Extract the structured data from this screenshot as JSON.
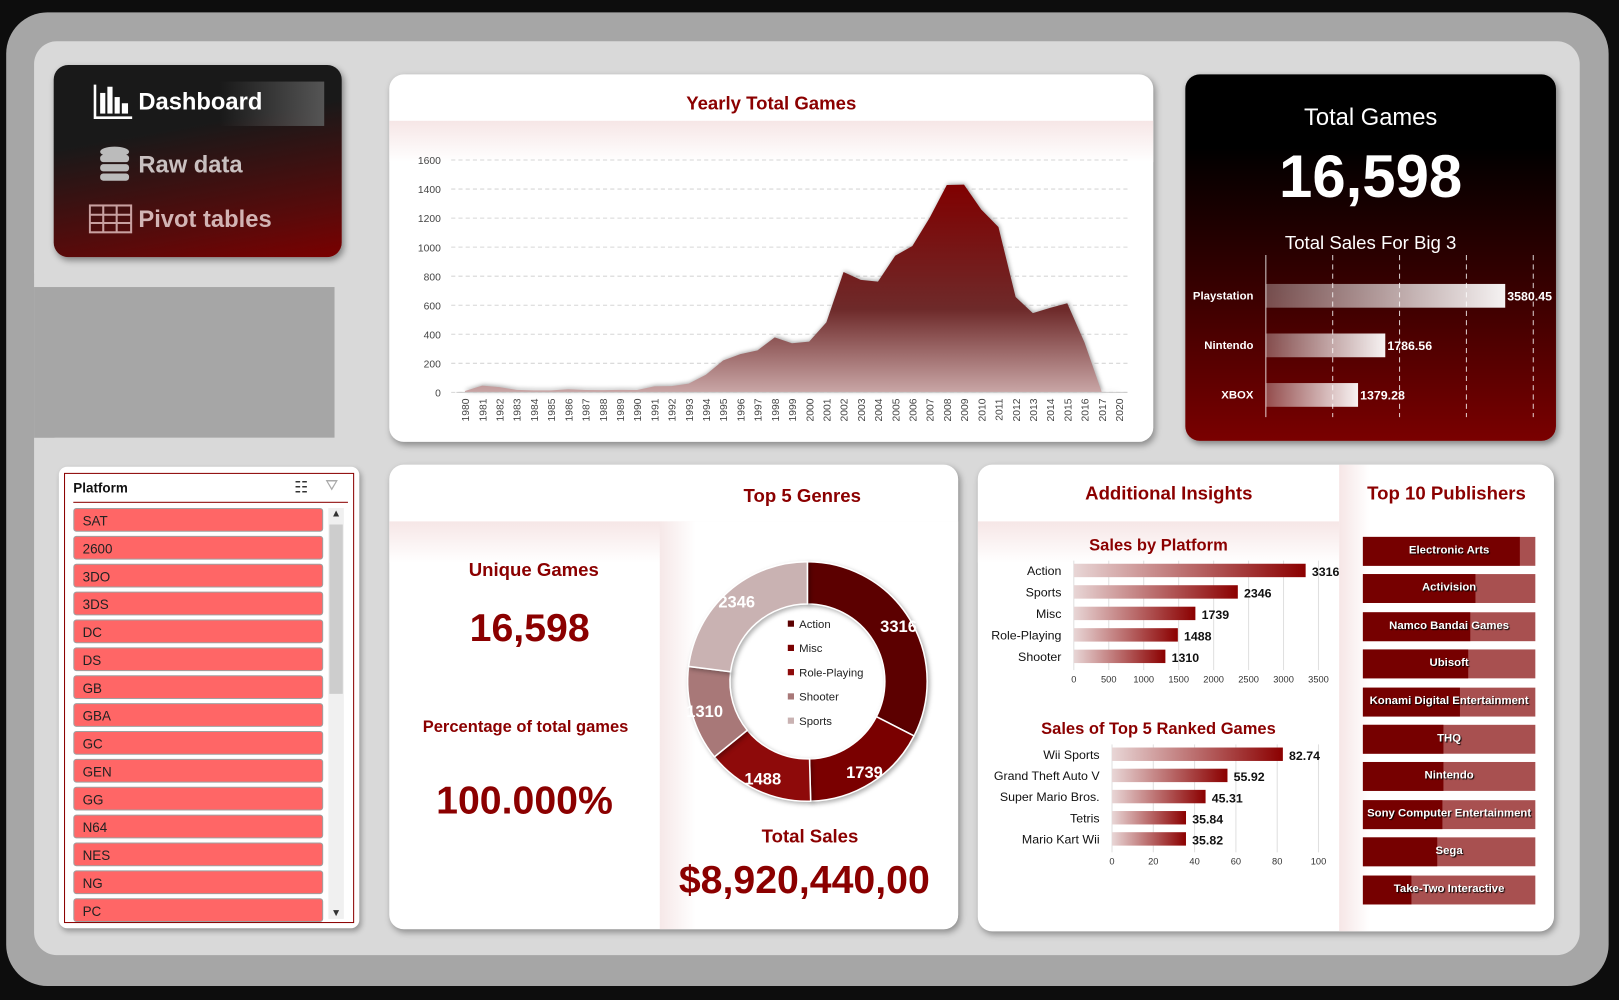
{
  "nav": {
    "items": [
      {
        "label": "Dashboard",
        "icon": "bar-chart-icon"
      },
      {
        "label": "Raw data",
        "icon": "database-icon"
      },
      {
        "label": "Pivot tables",
        "icon": "table-icon"
      }
    ]
  },
  "yearly": {
    "title": "Yearly Total Games"
  },
  "totals": {
    "games_title": "Total Games",
    "games_value": "16,598",
    "big3_title": "Total Sales For Big 3"
  },
  "slicer": {
    "title": "Platform",
    "items": [
      "SAT",
      "2600",
      "3DO",
      "3DS",
      "DC",
      "DS",
      "GB",
      "GBA",
      "GC",
      "GEN",
      "GG",
      "N64",
      "NES",
      "NG",
      "PC"
    ]
  },
  "genres": {
    "title": "Top 5 Genres",
    "unique_label": "Unique Games",
    "unique_value": "16,598",
    "pct_label": "Percentage of total games",
    "pct_value": "100.000%",
    "sales_label": "Total Sales",
    "sales_value": "$8,920,440,00"
  },
  "insights": {
    "title": "Additional Insights"
  },
  "publishers": {
    "title": "Top 10 Publishers",
    "items": [
      {
        "name": "Electronic Arts",
        "fill": 0.91
      },
      {
        "name": "Activision",
        "fill": 0.65
      },
      {
        "name": "Namco Bandai Games",
        "fill": 0.62
      },
      {
        "name": "Ubisoft",
        "fill": 0.61
      },
      {
        "name": "Konami Digital Entertainment",
        "fill": 0.56
      },
      {
        "name": "THQ",
        "fill": 0.47
      },
      {
        "name": "Nintendo",
        "fill": 0.47
      },
      {
        "name": "Sony Computer Entertainment",
        "fill": 0.46
      },
      {
        "name": "Sega",
        "fill": 0.43
      },
      {
        "name": "Take-Two Interactive",
        "fill": 0.28
      }
    ]
  },
  "colors": {
    "accent": "#8b0000",
    "slicer_item": "#ff6666"
  },
  "chart_data": [
    {
      "type": "area",
      "title": "Yearly Total Games",
      "x": [
        "1980",
        "1981",
        "1982",
        "1983",
        "1984",
        "1985",
        "1986",
        "1987",
        "1988",
        "1989",
        "1990",
        "1991",
        "1992",
        "1993",
        "1994",
        "1995",
        "1996",
        "1997",
        "1998",
        "1999",
        "2000",
        "2001",
        "2002",
        "2003",
        "2004",
        "2005",
        "2006",
        "2007",
        "2008",
        "2009",
        "2010",
        "2011",
        "2012",
        "2013",
        "2014",
        "2015",
        "2016",
        "2017",
        "2020"
      ],
      "values": [
        9,
        46,
        36,
        17,
        14,
        14,
        21,
        16,
        15,
        17,
        16,
        41,
        43,
        60,
        121,
        219,
        263,
        289,
        379,
        338,
        349,
        482,
        829,
        775,
        763,
        941,
        1008,
        1202,
        1428,
        1431,
        1259,
        1139,
        657,
        546,
        582,
        614,
        344,
        3,
        1
      ],
      "ylim": [
        0,
        1600
      ],
      "yticks": [
        0,
        200,
        400,
        600,
        800,
        1000,
        1200,
        1400,
        1600
      ],
      "grid": true
    },
    {
      "type": "bar",
      "title": "Total Sales For Big 3",
      "categories": [
        "Playstation",
        "Nintendo",
        "XBOX"
      ],
      "values": [
        3580.45,
        1786.56,
        1379.28
      ],
      "labels": [
        "3580.45",
        "1786.56",
        "1379.28"
      ],
      "xlim": [
        0,
        4000
      ],
      "grid": true
    },
    {
      "type": "pie",
      "title": "Top 5 Genres",
      "categories": [
        "Action",
        "Misc",
        "Role-Playing",
        "Shooter",
        "Sports"
      ],
      "values": [
        3316,
        1739,
        1488,
        1310,
        2346
      ],
      "colors": [
        "#5c0000",
        "#7a0000",
        "#8e0a0a",
        "#a87878",
        "#c9b2b2"
      ],
      "legend": "center"
    },
    {
      "type": "bar",
      "title": "Sales by Platform",
      "categories": [
        "Action",
        "Sports",
        "Misc",
        "Role-Playing",
        "Shooter"
      ],
      "values": [
        3316,
        2346,
        1739,
        1488,
        1310
      ],
      "labels": [
        "3316",
        "2346",
        "1739",
        "1488",
        "1310"
      ],
      "xlim": [
        0,
        3500
      ],
      "xticks": [
        "0",
        "500",
        "1000",
        "1500",
        "2000",
        "2500",
        "3000",
        "3500"
      ]
    },
    {
      "type": "bar",
      "title": "Sales of Top 5 Ranked Games",
      "categories": [
        "Wii Sports",
        "Grand Theft Auto V",
        "Super Mario Bros.",
        "Tetris",
        "Mario Kart Wii"
      ],
      "values": [
        82.74,
        55.92,
        45.31,
        35.84,
        35.82
      ],
      "labels": [
        "82.74",
        "55.92",
        "45.31",
        "35.84",
        "35.82"
      ],
      "xlim": [
        0,
        100
      ],
      "xticks": [
        "0",
        "20",
        "40",
        "60",
        "80",
        "100"
      ]
    }
  ]
}
